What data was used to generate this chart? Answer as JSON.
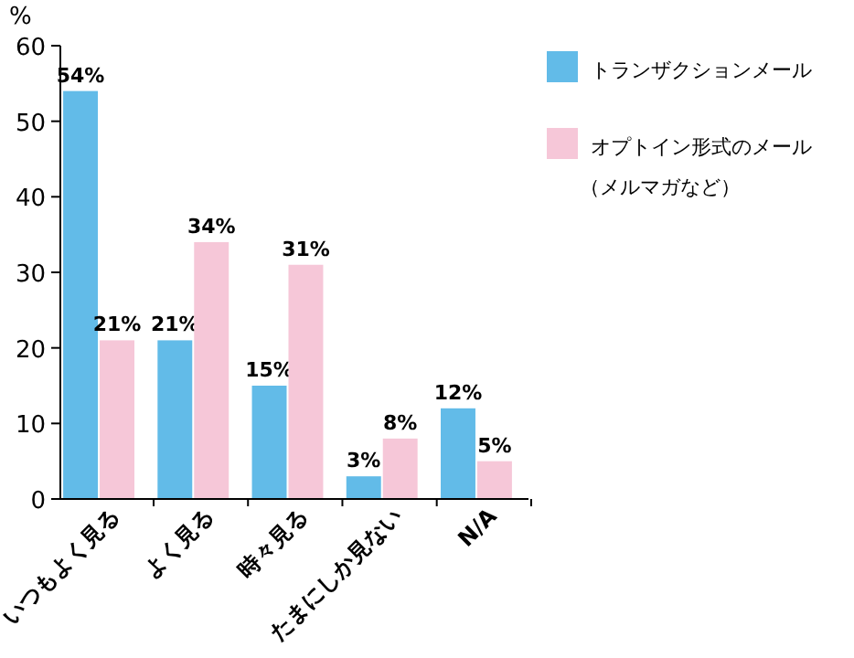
{
  "chart_data": {
    "type": "bar",
    "ylabel": "%",
    "categories": [
      "いつもよく見る",
      "よく見る",
      "時々見る",
      "たまにしか見ない",
      "N/A"
    ],
    "series": [
      {
        "name": "トランザクションメール",
        "color": "#62bbe8",
        "values": [
          54,
          21,
          15,
          3,
          12
        ]
      },
      {
        "name": "オプトイン形式のメール（メルマガなど）",
        "color": "#f6c7d8",
        "values": [
          21,
          34,
          31,
          8,
          5
        ]
      }
    ],
    "ylim": [
      0,
      60
    ],
    "yticks": [
      0,
      10,
      20,
      30,
      40,
      50,
      60
    ],
    "grid": false,
    "legend": "right",
    "value_labels": [
      [
        "54%",
        "21%",
        "15%",
        "3%",
        "12%"
      ],
      [
        "21%",
        "34%",
        "31%",
        "8%",
        "5%"
      ]
    ]
  }
}
